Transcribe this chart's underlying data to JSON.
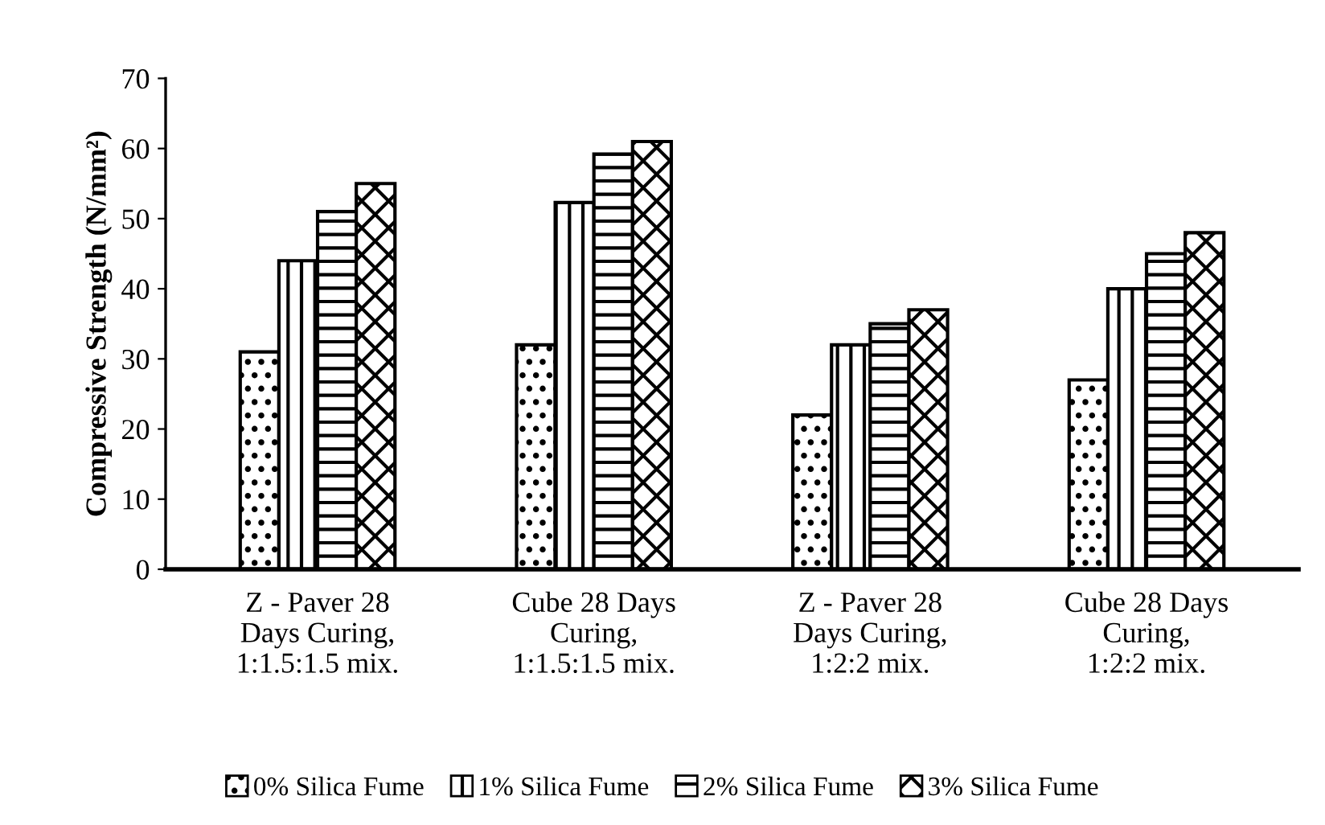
{
  "chart_data": {
    "type": "bar",
    "ylabel": "Compressive Strength (N/mm²)",
    "categories": [
      "Z - Paver 28\nDays Curing,\n1:1.5:1.5 mix.",
      "Cube 28 Days\nCuring,\n1:1.5:1.5 mix.",
      "Z - Paver 28\nDays Curing,\n1:2:2 mix.",
      "Cube 28 Days\nCuring,\n1:2:2 mix."
    ],
    "series": [
      {
        "name": "0% Silica Fume",
        "color": "#000000",
        "values": [
          31,
          32,
          22,
          27
        ]
      },
      {
        "name": "1% Silica Fume",
        "color": "#000000",
        "values": [
          44,
          52.3,
          32,
          40
        ]
      },
      {
        "name": "2% Silica Fume",
        "color": "#000000",
        "values": [
          51,
          59.2,
          35,
          45
        ]
      },
      {
        "name": "3% Silica Fume",
        "color": "#000000",
        "values": [
          55,
          61,
          37,
          48
        ]
      }
    ],
    "ylim": [
      0,
      70
    ],
    "yticks": [
      0,
      10,
      20,
      30,
      40,
      50,
      60,
      70
    ],
    "grid": false,
    "legend": "bottom"
  }
}
